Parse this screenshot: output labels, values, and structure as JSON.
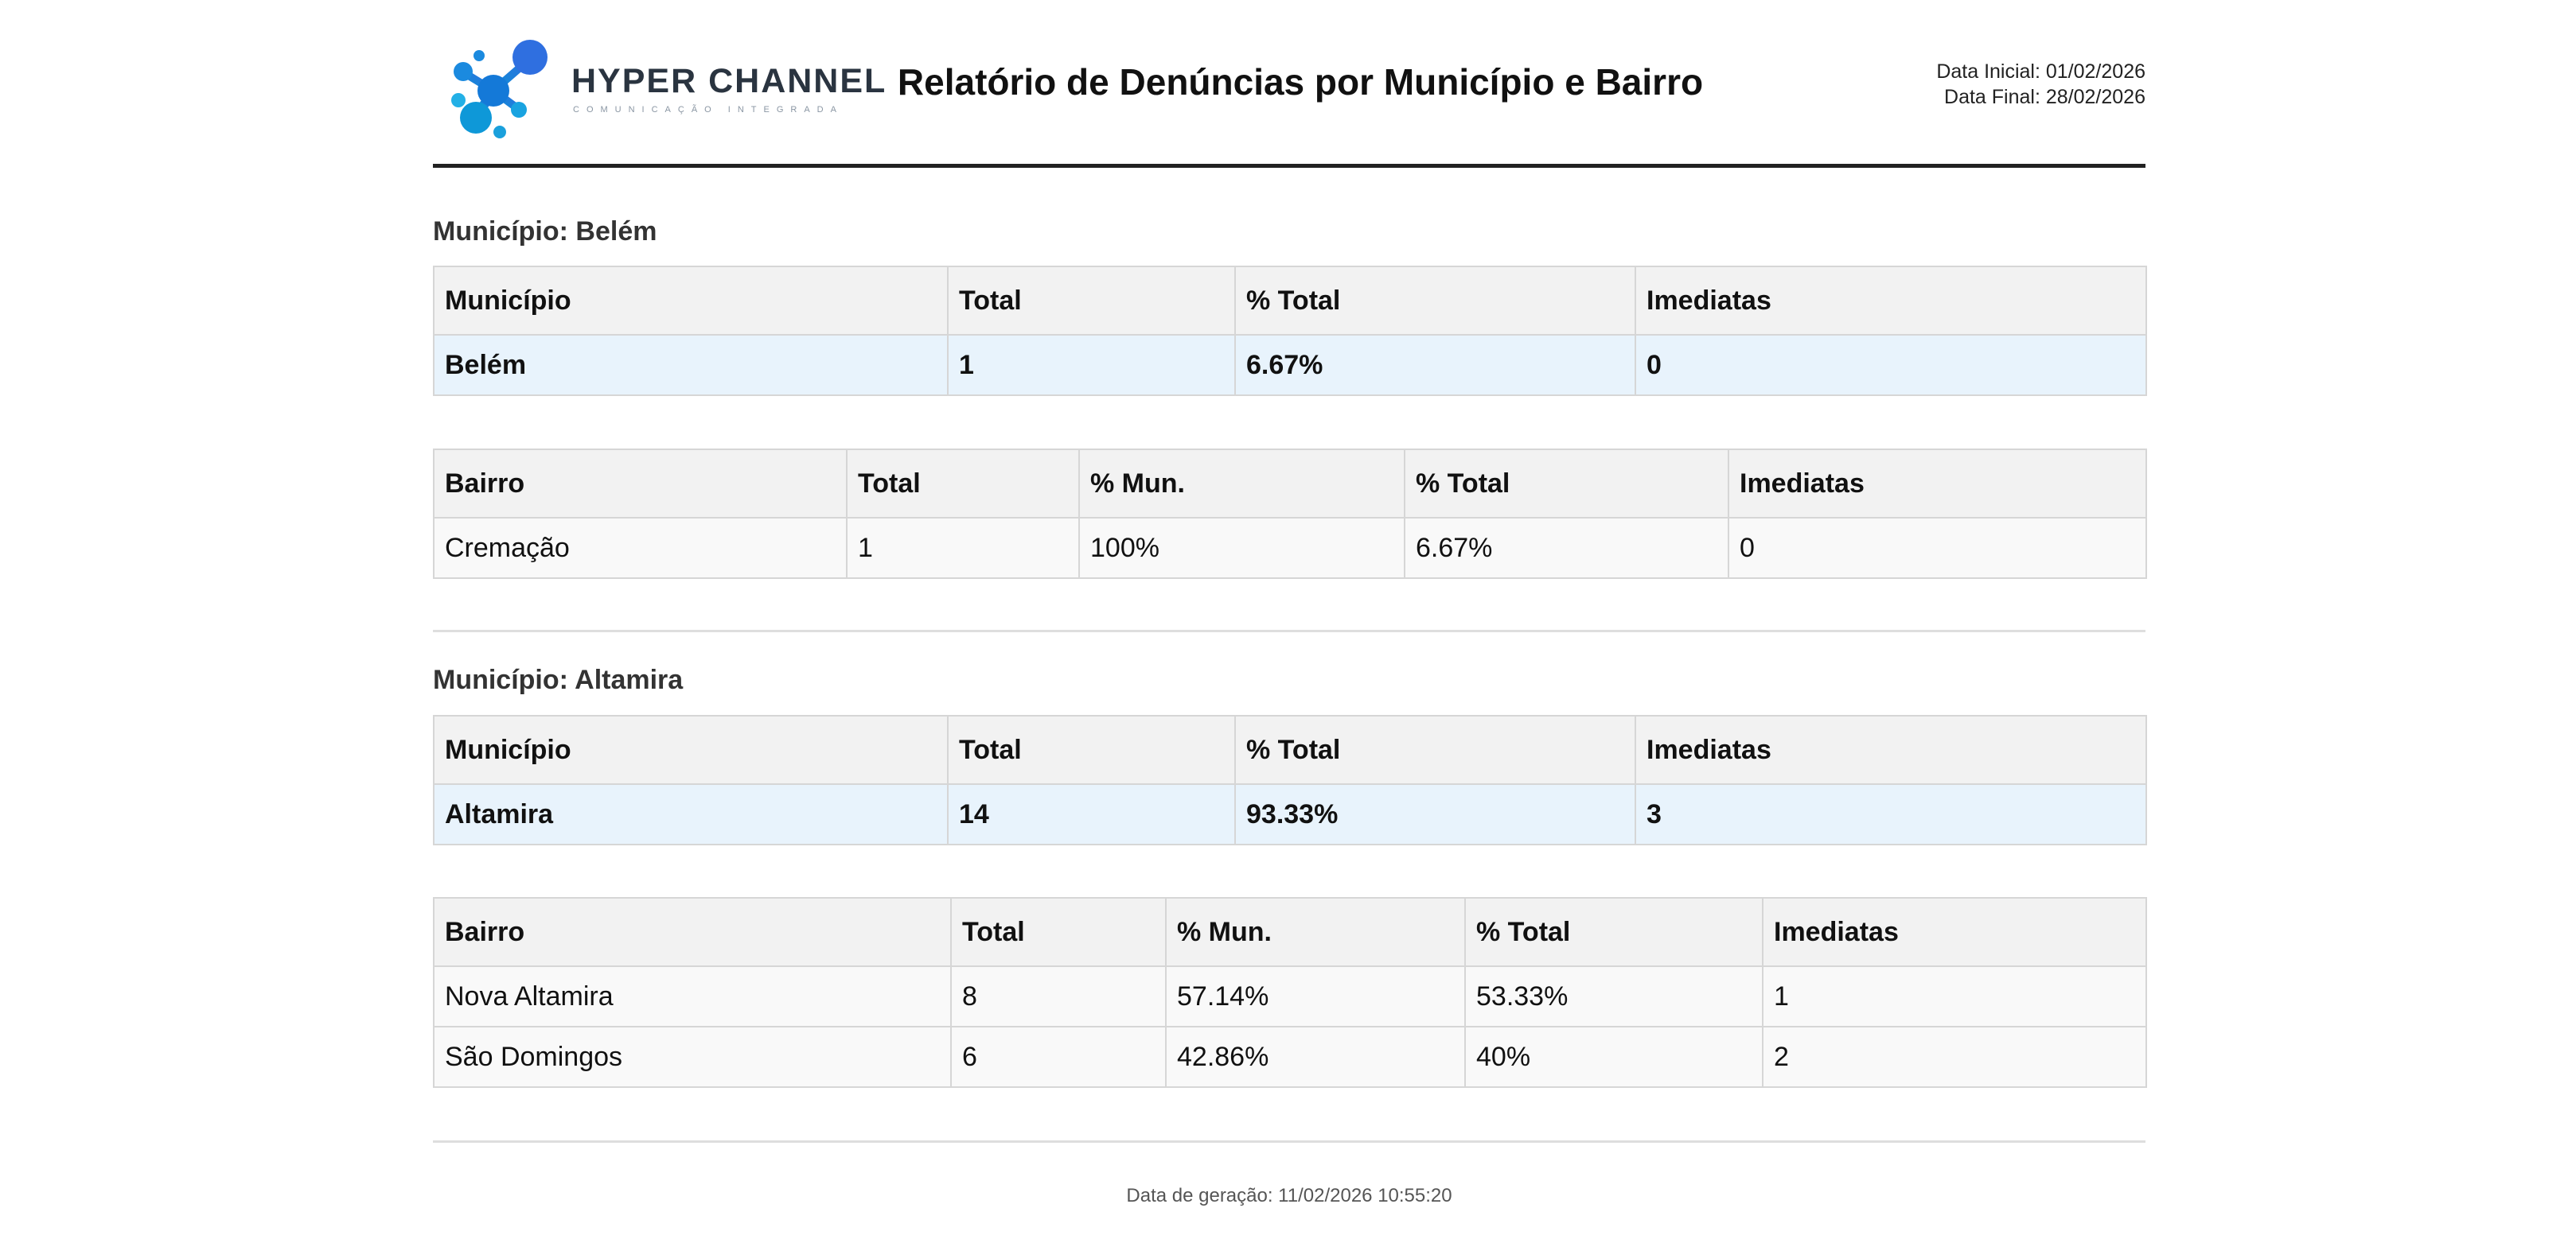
{
  "header": {
    "logo_name": "HYPER CHANNEL",
    "logo_tagline": "COMUNICAÇÃO INTEGRADA",
    "title": "Relatório de Denúncias por Município e Bairro",
    "date_start": "Data Inicial: 01/02/2026",
    "date_end": "Data Final: 28/02/2026"
  },
  "colors": {
    "logo_blue": "#1e88e5",
    "municipio_row_bg": "#e8f3fc",
    "header_row_bg": "#f2f2f2"
  },
  "sections": [
    {
      "heading": "Município: Belém",
      "muni_headers": [
        "Município",
        "Total",
        "% Total",
        "Imediatas"
      ],
      "muni_row": [
        "Belém",
        "1",
        "6.67%",
        "0"
      ],
      "bairro_headers": [
        "Bairro",
        "Total",
        "% Mun.",
        "% Total",
        "Imediatas"
      ],
      "bairro_rows": [
        [
          "Cremação",
          "1",
          "100%",
          "6.67%",
          "0"
        ]
      ]
    },
    {
      "heading": "Município: Altamira",
      "muni_headers": [
        "Município",
        "Total",
        "% Total",
        "Imediatas"
      ],
      "muni_row": [
        "Altamira",
        "14",
        "93.33%",
        "3"
      ],
      "bairro_headers": [
        "Bairro",
        "Total",
        "% Mun.",
        "% Total",
        "Imediatas"
      ],
      "bairro_rows": [
        [
          "Nova Altamira",
          "8",
          "57.14%",
          "53.33%",
          "1"
        ],
        [
          "São Domingos",
          "6",
          "42.86%",
          "40%",
          "2"
        ]
      ]
    }
  ],
  "footer": {
    "generated": "Data de geração: 11/02/2026 10:55:20"
  }
}
